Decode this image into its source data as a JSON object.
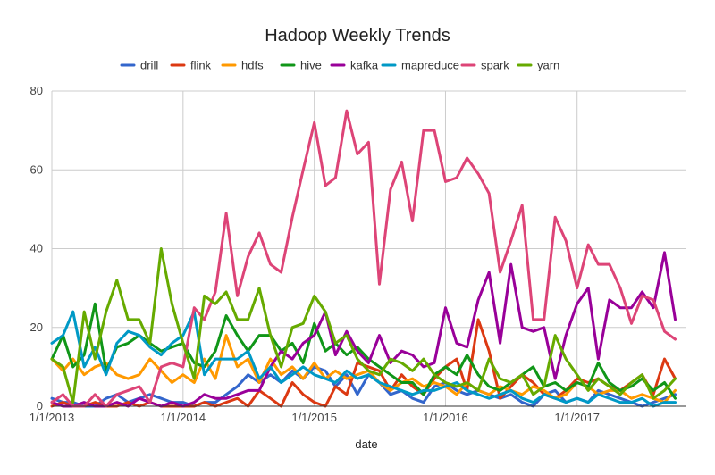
{
  "chart_data": {
    "type": "line",
    "title": "Hadoop Weekly Trends",
    "xlabel": "date",
    "ylabel": "",
    "ylim": [
      0,
      80
    ],
    "yticks": [
      "0",
      "20",
      "40",
      "60",
      "80"
    ],
    "xticks": [
      "1/1/2013",
      "1/1/2014",
      "1/1/2015",
      "1/1/2016",
      "1/1/2017"
    ],
    "xlim": [
      "2013-01-01",
      "2017-11-01"
    ],
    "grid": true,
    "legend_position": "top",
    "dates": [
      "2013-01",
      "2013-02",
      "2013-03",
      "2013-04",
      "2013-05",
      "2013-06",
      "2013-07",
      "2013-08",
      "2013-09",
      "2013-10",
      "2013-11",
      "2013-12",
      "2014-01",
      "2014-02",
      "2014-03",
      "2014-04",
      "2014-05",
      "2014-06",
      "2014-07",
      "2014-08",
      "2014-09",
      "2014-10",
      "2014-11",
      "2014-12",
      "2015-01",
      "2015-02",
      "2015-03",
      "2015-04",
      "2015-05",
      "2015-06",
      "2015-07",
      "2015-08",
      "2015-09",
      "2015-10",
      "2015-11",
      "2015-12",
      "2016-01",
      "2016-02",
      "2016-03",
      "2016-04",
      "2016-05",
      "2016-06",
      "2016-07",
      "2016-08",
      "2016-09",
      "2016-10",
      "2016-11",
      "2016-12",
      "2017-01",
      "2017-02",
      "2017-03",
      "2017-04",
      "2017-05",
      "2017-06",
      "2017-07",
      "2017-08",
      "2017-09",
      "2017-10"
    ],
    "series": [
      {
        "name": "drill",
        "color": "#3366cc",
        "values": [
          2,
          1,
          1,
          0,
          0,
          2,
          3,
          1,
          2,
          3,
          2,
          1,
          1,
          0,
          1,
          1,
          3,
          5,
          8,
          6,
          8,
          6,
          9,
          7,
          10,
          9,
          5,
          8,
          3,
          8,
          6,
          3,
          4,
          2,
          1,
          5,
          6,
          4,
          3,
          4,
          3,
          2,
          3,
          1,
          0,
          3,
          4,
          1,
          2,
          1,
          4,
          3,
          2,
          1,
          0,
          1,
          2,
          3
        ]
      },
      {
        "name": "flink",
        "color": "#dc3912",
        "values": [
          0,
          1,
          0,
          0,
          1,
          0,
          0,
          1,
          0,
          1,
          0,
          0,
          0,
          0,
          1,
          0,
          1,
          2,
          0,
          4,
          2,
          0,
          6,
          3,
          1,
          0,
          5,
          3,
          11,
          10,
          9,
          4,
          8,
          5,
          3,
          7,
          10,
          12,
          4,
          22,
          14,
          2,
          5,
          8,
          6,
          3,
          2,
          4,
          7,
          6,
          7,
          5,
          4,
          6,
          8,
          3,
          12,
          7
        ]
      },
      {
        "name": "hdfs",
        "color": "#ff9900",
        "values": [
          12,
          9,
          12,
          8,
          10,
          11,
          8,
          7,
          8,
          12,
          9,
          6,
          8,
          6,
          12,
          7,
          18,
          10,
          12,
          6,
          12,
          8,
          10,
          7,
          11,
          7,
          9,
          7,
          8,
          9,
          6,
          4,
          6,
          7,
          5,
          6,
          5,
          3,
          6,
          4,
          3,
          5,
          4,
          3,
          5,
          4,
          2,
          3,
          6,
          5,
          3,
          4,
          4,
          2,
          3,
          2,
          1,
          4
        ]
      },
      {
        "name": "hive",
        "color": "#109618",
        "values": [
          12,
          18,
          10,
          13,
          26,
          9,
          15,
          16,
          18,
          16,
          14,
          15,
          16,
          11,
          10,
          14,
          23,
          18,
          14,
          18,
          18,
          14,
          16,
          11,
          21,
          14,
          16,
          13,
          15,
          12,
          10,
          8,
          6,
          6,
          3,
          8,
          10,
          8,
          13,
          8,
          5,
          4,
          6,
          8,
          10,
          5,
          6,
          4,
          6,
          5,
          11,
          6,
          4,
          5,
          7,
          4,
          6,
          2
        ]
      },
      {
        "name": "kafka",
        "color": "#990099",
        "values": [
          1,
          0,
          0,
          1,
          0,
          0,
          1,
          0,
          2,
          1,
          0,
          1,
          0,
          1,
          3,
          2,
          2,
          3,
          4,
          4,
          10,
          14,
          12,
          16,
          18,
          24,
          13,
          19,
          14,
          11,
          18,
          11,
          14,
          13,
          10,
          11,
          25,
          16,
          15,
          27,
          34,
          16,
          36,
          20,
          19,
          20,
          7,
          18,
          26,
          30,
          12,
          27,
          25,
          25,
          29,
          25,
          39,
          22
        ]
      },
      {
        "name": "mapreduce",
        "color": "#0099c6",
        "values": [
          16,
          18,
          24,
          10,
          15,
          8,
          16,
          19,
          18,
          15,
          13,
          16,
          18,
          24,
          8,
          12,
          12,
          12,
          14,
          7,
          10,
          6,
          8,
          10,
          8,
          7,
          6,
          9,
          7,
          8,
          6,
          5,
          4,
          3,
          4,
          4,
          5,
          6,
          4,
          3,
          2,
          3,
          4,
          2,
          1,
          3,
          2,
          1,
          2,
          1,
          3,
          2,
          1,
          1,
          2,
          0,
          1,
          1
        ]
      },
      {
        "name": "spark",
        "color": "#dd4477",
        "values": [
          1,
          3,
          0,
          0,
          3,
          0,
          3,
          4,
          5,
          1,
          10,
          11,
          10,
          25,
          22,
          29,
          49,
          28,
          38,
          44,
          36,
          34,
          48,
          60,
          72,
          56,
          58,
          75,
          64,
          67,
          31,
          55,
          62,
          47,
          70,
          70,
          57,
          58,
          63,
          59,
          54,
          34,
          42,
          51,
          22,
          22,
          48,
          42,
          30,
          41,
          36,
          36,
          30,
          21,
          28,
          27,
          19,
          17
        ]
      },
      {
        "name": "yarn",
        "color": "#66aa00",
        "values": [
          12,
          10,
          1,
          24,
          12,
          24,
          32,
          22,
          22,
          16,
          40,
          26,
          16,
          7,
          28,
          26,
          29,
          22,
          22,
          30,
          18,
          10,
          20,
          21,
          28,
          24,
          16,
          18,
          12,
          9,
          8,
          12,
          11,
          9,
          12,
          8,
          6,
          5,
          6,
          4,
          12,
          7,
          6,
          8,
          3,
          5,
          18,
          12,
          8,
          4,
          7,
          5,
          3,
          6,
          8,
          2,
          4,
          7
        ]
      }
    ]
  }
}
